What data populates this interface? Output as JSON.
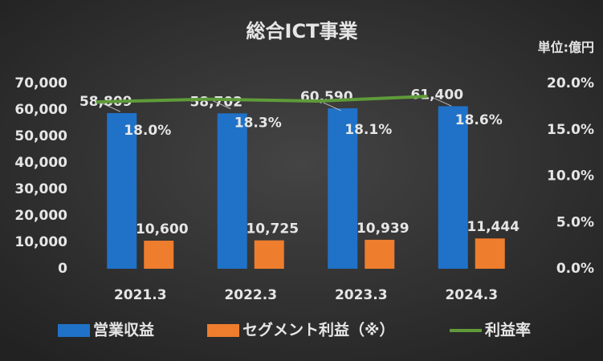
{
  "chart_data": {
    "type": "bar",
    "title": "総合ICT事業",
    "unit_label": "単位:億円",
    "categories": [
      "2021.3",
      "2022.3",
      "2023.3",
      "2024.3"
    ],
    "series": [
      {
        "name": "営業収益",
        "color": "#1f72c8",
        "values": [
          58809,
          58702,
          60590,
          61400
        ],
        "value_labels": [
          "58,809",
          "58,702",
          "60,590",
          "61,400"
        ]
      },
      {
        "name": "セグメント利益（※）",
        "color": "#ee7d2e",
        "values": [
          10600,
          10725,
          10939,
          11444
        ],
        "value_labels": [
          "10,600",
          "10,725",
          "10,939",
          "11,444"
        ]
      },
      {
        "name": "利益率",
        "type": "line",
        "axis": "y2",
        "color": "#5f9b3a",
        "values": [
          18.0,
          18.3,
          18.1,
          18.6
        ],
        "value_labels": [
          "18.0%",
          "18.3%",
          "18.1%",
          "18.6%"
        ]
      }
    ],
    "ylim": [
      0,
      70000
    ],
    "yticks": [
      0,
      {
        "value": 10000,
        "label": "10,000"
      },
      {
        "value": 20000,
        "label": "20,000"
      },
      {
        "value": 30000,
        "label": "30,000"
      },
      {
        "value": 40000,
        "label": "40,000"
      },
      {
        "value": 50000,
        "label": "50,000"
      },
      {
        "value": 60000,
        "label": "60,000"
      },
      {
        "value": 70000,
        "label": "70,000"
      }
    ],
    "y2lim": [
      0,
      20
    ],
    "y2ticks": [
      {
        "value": 0,
        "label": "0.0%"
      },
      {
        "value": 5,
        "label": "5.0%"
      },
      {
        "value": 10,
        "label": "10.0%"
      },
      {
        "value": 15,
        "label": "15.0%"
      },
      {
        "value": 20,
        "label": "20.0%"
      }
    ],
    "grid": false,
    "legend": "bottom"
  }
}
